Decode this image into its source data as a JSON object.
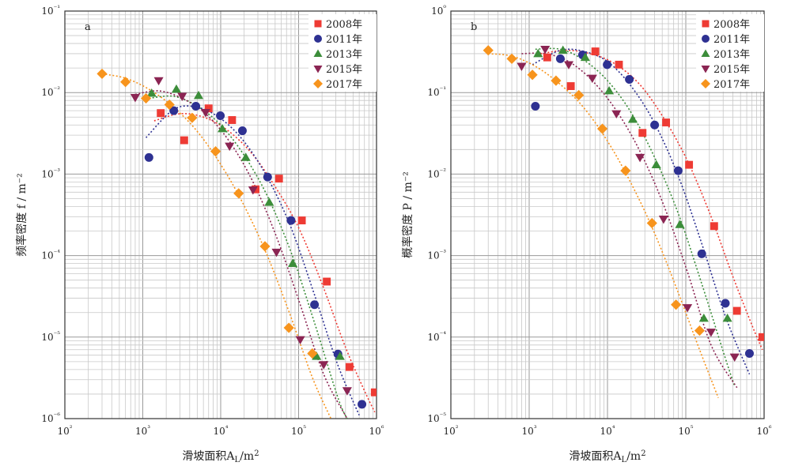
{
  "chart_data": [
    {
      "type": "scatter",
      "panel_label": "a",
      "xlabel": "滑坡面积A_L/m²",
      "ylabel": "频率密度 f / m⁻²",
      "xscale": "log",
      "yscale": "log",
      "xlim": [
        100,
        1000000
      ],
      "ylim": [
        1e-06,
        0.1
      ],
      "x_ticks": [
        "10²",
        "10³",
        "10⁴",
        "10⁵",
        "10⁶"
      ],
      "y_ticks": [
        "10⁻¹",
        "10⁻²",
        "10⁻³",
        "10⁻⁴",
        "10⁻⁵",
        "10⁻⁶"
      ],
      "grid": true,
      "legend_position": "top-right",
      "series": [
        {
          "name": "2008年",
          "marker": "square",
          "color": "#ee3b34",
          "x": [
            1700,
            3400,
            7000,
            14000,
            28000,
            56000,
            110000,
            230000,
            450000,
            950000
          ],
          "y": [
            0.0056,
            0.0026,
            0.0064,
            0.0046,
            0.00065,
            0.00088,
            0.00027,
            4.8e-05,
            4.3e-06,
            2.1e-06
          ]
        },
        {
          "name": "2011年",
          "marker": "circle",
          "color": "#2e3192",
          "x": [
            1200,
            2500,
            4800,
            9900,
            19000,
            40000,
            80000,
            160000,
            320000,
            650000
          ],
          "y": [
            0.0016,
            0.006,
            0.0068,
            0.0052,
            0.0034,
            0.00092,
            0.00027,
            2.5e-05,
            6.2e-06,
            1.5e-06
          ]
        },
        {
          "name": "2013年",
          "marker": "triangle-up",
          "color": "#3c8d3a",
          "x": [
            1300,
            2700,
            5200,
            10500,
            21000,
            42000,
            84000,
            170000,
            340000
          ],
          "y": [
            0.0098,
            0.011,
            0.0092,
            0.0036,
            0.0016,
            0.00045,
            8e-05,
            5.8e-06,
            5.8e-06
          ]
        },
        {
          "name": "2015年",
          "marker": "triangle-down",
          "color": "#8b2553",
          "x": [
            800,
            1600,
            3200,
            6400,
            13000,
            26000,
            52000,
            105000,
            210000,
            420000
          ],
          "y": [
            0.0087,
            0.014,
            0.009,
            0.0057,
            0.0022,
            0.00064,
            0.00011,
            9.3e-06,
            4.6e-06,
            2.2e-06
          ]
        },
        {
          "name": "2017年",
          "marker": "diamond",
          "color": "#f7941d",
          "x": [
            300,
            600,
            1100,
            2200,
            4300,
            8600,
            17000,
            37000,
            75000,
            150000
          ],
          "y": [
            0.017,
            0.0135,
            0.0085,
            0.0071,
            0.0049,
            0.0019,
            0.00058,
            0.00013,
            1.3e-05,
            6.3e-06
          ]
        }
      ],
      "fit_lines": [
        {
          "series": "2008年",
          "x": [
            1400,
            3000,
            6000,
            12000,
            25000,
            50000,
            100000,
            200000,
            400000,
            700000,
            950000
          ],
          "y": [
            0.0045,
            0.0055,
            0.005,
            0.0035,
            0.0018,
            0.0007,
            0.00022,
            4.5e-05,
            7.5e-06,
            2.2e-06,
            1.2e-06
          ]
        },
        {
          "series": "2011年",
          "x": [
            1100,
            2500,
            5000,
            10000,
            20000,
            40000,
            80000,
            160000,
            320000,
            600000
          ],
          "y": [
            0.0028,
            0.0062,
            0.0066,
            0.0048,
            0.0025,
            0.0009,
            0.00022,
            3.3e-05,
            4.5e-06,
            1.1e-06
          ]
        },
        {
          "series": "2013年",
          "x": [
            1200,
            2500,
            5000,
            10000,
            20000,
            40000,
            80000,
            160000,
            320000,
            420000
          ],
          "y": [
            0.0085,
            0.009,
            0.0068,
            0.004,
            0.0017,
            0.00053,
            0.00011,
            1.5e-05,
            1.8e-06,
            1e-06
          ]
        },
        {
          "series": "2015年",
          "x": [
            800,
            1600,
            3200,
            6400,
            13000,
            26000,
            52000,
            105000,
            210000,
            420000
          ],
          "y": [
            0.0095,
            0.0105,
            0.0085,
            0.0055,
            0.0025,
            0.0008,
            0.00017,
            2.5e-05,
            3.5e-06,
            1e-06
          ]
        },
        {
          "series": "2017年",
          "x": [
            300,
            600,
            1200,
            2400,
            4800,
            9600,
            19000,
            38000,
            76000,
            150000,
            260000
          ],
          "y": [
            0.017,
            0.015,
            0.011,
            0.0068,
            0.0035,
            0.0014,
            0.00045,
            0.00011,
            2e-05,
            3.2e-06,
            1e-06
          ]
        }
      ]
    },
    {
      "type": "scatter",
      "panel_label": "b",
      "xlabel": "滑坡面积A_L/m²",
      "ylabel": "概率密度 P / m⁻²",
      "xscale": "log",
      "yscale": "log",
      "xlim": [
        100,
        1000000
      ],
      "ylim": [
        1e-05,
        1
      ],
      "x_ticks": [
        "10²",
        "10³",
        "10⁴",
        "10⁵",
        "10⁶"
      ],
      "y_ticks": [
        "10⁰",
        "10⁻¹",
        "10⁻²",
        "10⁻³",
        "10⁻⁴",
        "10⁻⁵"
      ],
      "grid": true,
      "legend_position": "top-right",
      "series": [
        {
          "name": "2008年",
          "marker": "square",
          "color": "#ee3b34",
          "x": [
            1700,
            3400,
            7000,
            14000,
            28000,
            56000,
            110000,
            230000,
            450000,
            950000
          ],
          "y": [
            0.27,
            0.12,
            0.32,
            0.22,
            0.032,
            0.043,
            0.013,
            0.0023,
            0.00021,
            0.0001
          ]
        },
        {
          "name": "2011年",
          "marker": "circle",
          "color": "#2e3192",
          "x": [
            1200,
            2500,
            4800,
            9900,
            19000,
            40000,
            80000,
            160000,
            320000,
            650000
          ],
          "y": [
            0.068,
            0.26,
            0.29,
            0.22,
            0.145,
            0.04,
            0.011,
            0.00105,
            0.00026,
            6.3e-05
          ]
        },
        {
          "name": "2013年",
          "marker": "triangle-up",
          "color": "#3c8d3a",
          "x": [
            1300,
            2700,
            5200,
            10500,
            21000,
            42000,
            84000,
            170000,
            340000
          ],
          "y": [
            0.3,
            0.33,
            0.27,
            0.105,
            0.047,
            0.013,
            0.0024,
            0.00017,
            0.00017
          ]
        },
        {
          "name": "2015年",
          "marker": "triangle-down",
          "color": "#8b2553",
          "x": [
            800,
            1600,
            3200,
            6400,
            13000,
            26000,
            52000,
            105000,
            210000,
            420000
          ],
          "y": [
            0.21,
            0.34,
            0.22,
            0.15,
            0.055,
            0.016,
            0.0028,
            0.00023,
            0.000115,
            5.7e-05
          ]
        },
        {
          "name": "2017年",
          "marker": "diamond",
          "color": "#f7941d",
          "x": [
            300,
            600,
            1100,
            2200,
            4300,
            8600,
            17000,
            37000,
            75000,
            150000
          ],
          "y": [
            0.33,
            0.26,
            0.165,
            0.14,
            0.093,
            0.036,
            0.011,
            0.0025,
            0.00025,
            0.00012
          ]
        }
      ],
      "fit_lines": [
        {
          "series": "2008年",
          "x": [
            1400,
            3000,
            6000,
            12000,
            25000,
            50000,
            100000,
            200000,
            400000,
            700000,
            950000
          ],
          "y": [
            0.3,
            0.33,
            0.3,
            0.23,
            0.13,
            0.052,
            0.016,
            0.0034,
            0.00055,
            0.00014,
            7e-05
          ]
        },
        {
          "series": "2011年",
          "x": [
            1100,
            2500,
            5000,
            10000,
            20000,
            40000,
            80000,
            160000,
            320000,
            650000
          ],
          "y": [
            0.22,
            0.33,
            0.32,
            0.24,
            0.12,
            0.042,
            0.0095,
            0.0014,
            0.00018,
            3.5e-05
          ]
        },
        {
          "series": "2013年",
          "x": [
            1200,
            2500,
            5000,
            10000,
            20000,
            40000,
            80000,
            160000,
            320000,
            420000
          ],
          "y": [
            0.34,
            0.34,
            0.25,
            0.14,
            0.057,
            0.016,
            0.0033,
            0.00045,
            5.5e-05,
            2.5e-05
          ]
        },
        {
          "series": "2015年",
          "x": [
            800,
            1600,
            3200,
            6400,
            13000,
            26000,
            52000,
            105000,
            210000,
            450000
          ],
          "y": [
            0.3,
            0.3,
            0.24,
            0.14,
            0.06,
            0.019,
            0.0042,
            0.00063,
            8e-05,
            2.4e-05
          ]
        },
        {
          "series": "2017年",
          "x": [
            300,
            600,
            1200,
            2400,
            4800,
            9600,
            19000,
            38000,
            76000,
            150000,
            260000
          ],
          "y": [
            0.3,
            0.28,
            0.21,
            0.13,
            0.068,
            0.027,
            0.0085,
            0.0021,
            0.0004,
            7e-05,
            1.8e-05
          ]
        }
      ]
    }
  ]
}
